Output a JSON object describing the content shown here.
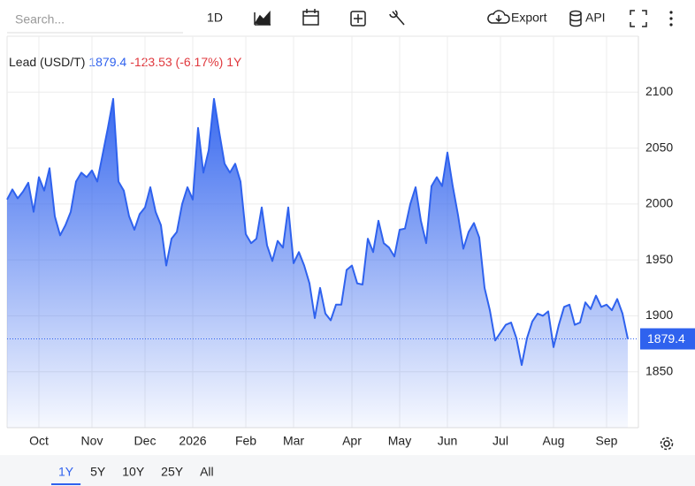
{
  "ui": {
    "search": "Search...",
    "interval": "1D",
    "export": "Export",
    "api": "API",
    "ranges": [
      "1Y",
      "5Y",
      "10Y",
      "25Y",
      "All"
    ]
  },
  "chart_data": {
    "type": "area",
    "title": "Lead (USD/T)",
    "change": "-123.53 (-6.17%)",
    "period": "1Y",
    "color": "#2f62ee",
    "categories": [
      null,
      null,
      null,
      null,
      null,
      null,
      "Oct",
      null,
      null,
      null,
      null,
      null,
      null,
      null,
      null,
      null,
      "Nov",
      null,
      null,
      null,
      null,
      null,
      null,
      null,
      null,
      null,
      "Dec",
      null,
      null,
      null,
      null,
      null,
      null,
      null,
      null,
      "2026",
      null,
      null,
      null,
      null,
      null,
      null,
      null,
      null,
      null,
      "Feb",
      null,
      null,
      null,
      null,
      null,
      null,
      null,
      null,
      "Mar",
      null,
      null,
      null,
      null,
      null,
      null,
      null,
      null,
      null,
      null,
      "Apr",
      null,
      null,
      null,
      null,
      null,
      null,
      null,
      null,
      "May",
      null,
      null,
      null,
      null,
      null,
      null,
      null,
      null,
      "Jun",
      null,
      null,
      null,
      null,
      null,
      null,
      null,
      null,
      null,
      "Jul",
      null,
      null,
      null,
      null,
      null,
      null,
      null,
      null,
      null,
      "Aug",
      null,
      null,
      null,
      null,
      null,
      null,
      null,
      null,
      null,
      "Sep",
      null,
      null,
      null,
      null
    ],
    "values": [
      2004,
      2013,
      2005,
      2011,
      2019,
      1993,
      2024,
      2012,
      2032,
      1989,
      1972,
      1981,
      1993,
      2020,
      2028,
      2024,
      2030,
      2020,
      2044,
      2068,
      2094,
      2020,
      2012,
      1989,
      1977,
      1991,
      1997,
      2015,
      1993,
      1981,
      1945,
      1969,
      1975,
      2000,
      2015,
      2004,
      2068,
      2028,
      2048,
      2094,
      2064,
      2036,
      2028,
      2036,
      2020,
      1973,
      1965,
      1969,
      1997,
      1963,
      1949,
      1967,
      1961,
      1997,
      1947,
      1957,
      1945,
      1929,
      1898,
      1925,
      1902,
      1896,
      1910,
      1910,
      1941,
      1945,
      1929,
      1928,
      1969,
      1957,
      1985,
      1965,
      1961,
      1953,
      1977,
      1978,
      2000,
      2015,
      1985,
      1965,
      2016,
      2024,
      2016,
      2046,
      2016,
      1990,
      1960,
      1975,
      1983,
      1970,
      1925,
      1905,
      1878,
      1885,
      1892,
      1894,
      1880,
      1856,
      1880,
      1895,
      1902,
      1900,
      1904,
      1872,
      1892,
      1908,
      1910,
      1892,
      1894,
      1912,
      1906,
      1918,
      1908,
      1910,
      1905,
      1915,
      1902,
      1879.4
    ],
    "ylim": [
      1800,
      2150
    ],
    "yticks": [
      1850,
      1900,
      1950,
      2000,
      2050,
      2100
    ],
    "grid": true
  }
}
